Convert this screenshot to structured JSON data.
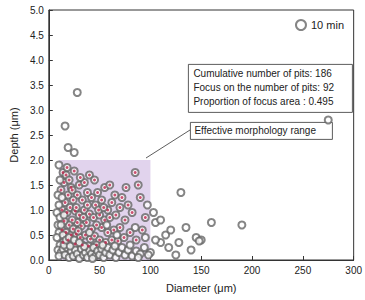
{
  "chart_data": {
    "type": "scatter",
    "x_label": "Diameter (μm)",
    "y_label": "Depth (μm)",
    "xlim": [
      0,
      300
    ],
    "xticks": [
      0,
      50,
      100,
      150,
      200,
      250,
      300
    ],
    "ylim": [
      0,
      5
    ],
    "yticks": [
      {
        "value": 0,
        "label": "0.0"
      },
      {
        "value": 0.5,
        "label": "0.5"
      },
      {
        "value": 1,
        "label": "1.0"
      },
      {
        "value": 1.5,
        "label": "1.5"
      },
      {
        "value": 2,
        "label": "2.0"
      },
      {
        "value": 2.5,
        "label": "2.5"
      },
      {
        "value": 3,
        "label": "3.0"
      },
      {
        "value": 3.5,
        "label": "3.5"
      },
      {
        "value": 4,
        "label": "4.0"
      },
      {
        "value": 4.5,
        "label": "4.5"
      },
      {
        "value": 5,
        "label": "5.0"
      }
    ],
    "grid": false,
    "legend": "upper right",
    "annotations": [
      "Cumulative number of pits: 186",
      "Focus on the number of pits: 92",
      "Proportion of focus area : 0.495"
    ],
    "focus_area": {
      "label": "Effective morphology range",
      "xlim": [
        10,
        100
      ],
      "ylim": [
        0,
        2
      ],
      "color": "#d9c8e8"
    },
    "series": [
      {
        "name": "10 min",
        "color": "#666666",
        "marker": "circle_open",
        "focus_color": "#c0284e",
        "x": [
          14,
          15,
          17,
          20,
          22,
          25,
          30,
          35,
          40,
          45,
          48,
          55,
          60,
          65,
          72,
          85,
          88,
          90,
          78,
          70,
          62,
          58,
          52,
          46,
          42,
          38,
          33,
          28,
          24,
          19,
          16,
          13,
          18,
          21,
          26,
          30,
          35,
          40,
          44,
          50,
          55,
          60,
          66,
          75,
          82,
          95,
          92,
          80,
          70,
          64,
          58,
          52,
          47,
          42,
          37,
          32,
          28,
          23,
          20,
          15,
          13,
          17,
          22,
          27,
          31,
          36,
          41,
          45,
          50,
          56,
          62,
          68,
          74,
          86,
          26,
          19,
          14,
          33,
          39,
          47,
          24,
          29,
          34,
          38,
          27,
          49,
          54,
          23,
          31,
          18,
          12,
          76,
          28,
          16,
          19,
          25,
          275,
          130,
          10,
          11,
          9,
          10,
          8,
          11,
          9,
          10,
          8,
          11,
          9,
          12,
          10,
          105,
          110,
          115,
          120,
          128,
          135,
          140,
          145,
          150,
          160,
          190,
          110,
          100,
          125,
          105,
          118,
          98,
          148,
          103,
          14,
          16,
          18,
          20,
          22,
          24,
          26,
          28,
          30,
          32,
          34,
          36,
          38,
          40,
          42,
          44,
          46,
          48,
          50,
          52,
          54,
          56,
          58,
          60,
          63,
          66,
          69,
          72,
          75,
          78,
          82,
          86,
          90,
          94,
          15,
          21,
          35,
          43,
          53,
          65,
          80,
          88,
          13,
          15,
          12,
          14,
          17,
          20,
          25,
          30,
          40,
          57,
          67,
          85,
          95,
          97
        ],
        "y": [
          1.75,
          1.55,
          1.7,
          1.6,
          1.45,
          1.78,
          1.5,
          1.55,
          1.7,
          1.6,
          1.35,
          1.45,
          1.5,
          1.3,
          1.25,
          1.75,
          1.5,
          1.25,
          1.1,
          1.05,
          1.15,
          1.0,
          1.2,
          1.1,
          1.25,
          1.35,
          1.2,
          1.3,
          1.2,
          1.3,
          1.15,
          1.0,
          0.95,
          1.05,
          0.98,
          0.9,
          1.0,
          0.92,
          0.85,
          0.9,
          0.8,
          0.85,
          0.9,
          0.8,
          0.95,
          0.85,
          0.6,
          0.55,
          0.65,
          0.6,
          0.55,
          0.65,
          0.7,
          0.62,
          0.75,
          0.68,
          0.75,
          0.8,
          0.7,
          0.78,
          0.6,
          0.55,
          0.5,
          0.52,
          0.45,
          0.5,
          0.42,
          0.48,
          0.4,
          0.35,
          0.4,
          0.38,
          0.45,
          0.4,
          0.32,
          0.4,
          0.35,
          0.3,
          0.28,
          0.3,
          0.62,
          0.58,
          0.85,
          1.1,
          1.05,
          1.0,
          1.05,
          1.4,
          1.65,
          1.85,
          1.4,
          1.45,
          3.35,
          2.68,
          2.25,
          2.15,
          2.8,
          1.35,
          1.9,
          1.6,
          1.3,
          1.1,
          0.95,
          0.85,
          0.7,
          0.55,
          0.45,
          0.3,
          0.2,
          0.15,
          0.08,
          0.75,
          0.8,
          0.5,
          0.6,
          0.35,
          0.65,
          0.2,
          0.45,
          0.4,
          0.75,
          0.7,
          0.35,
          0.15,
          0.1,
          0.4,
          0.25,
          0.1,
          0.38,
          0.95,
          0.22,
          0.1,
          0.25,
          0.05,
          0.18,
          0.08,
          0.2,
          0.12,
          0.03,
          0.22,
          0.1,
          0.15,
          0.05,
          0.2,
          0.12,
          0.25,
          0.08,
          0.18,
          0.1,
          0.22,
          0.05,
          0.15,
          0.25,
          0.1,
          0.2,
          0.05,
          0.15,
          0.25,
          0.1,
          0.2,
          0.08,
          0.18,
          0.12,
          0.25,
          0.3,
          0.28,
          0.27,
          0.03,
          0.3,
          0.28,
          0.3,
          0.05,
          1.25,
          0.9,
          0.7,
          0.5,
          0.4,
          0.45,
          0.4,
          0.35,
          0.55,
          0.7,
          0.5,
          0.65,
          0.45,
          1.1
        ],
        "focus": [
          true,
          true,
          true,
          true,
          true,
          true,
          true,
          true,
          true,
          true,
          true,
          true,
          true,
          true,
          true,
          true,
          true,
          true,
          true,
          true,
          true,
          true,
          true,
          true,
          true,
          true,
          true,
          true,
          true,
          true,
          true,
          true,
          true,
          true,
          true,
          true,
          true,
          true,
          true,
          true,
          true,
          true,
          true,
          true,
          true,
          true,
          true,
          true,
          true,
          true,
          true,
          true,
          true,
          true,
          true,
          true,
          true,
          true,
          true,
          true,
          true,
          true,
          true,
          true,
          true,
          true,
          true,
          true,
          true,
          true,
          true,
          true,
          true,
          true,
          true,
          true,
          true,
          true,
          true,
          true,
          true,
          true,
          true,
          true,
          true,
          true,
          true,
          true,
          true,
          true,
          true,
          true,
          false,
          false,
          false,
          false,
          false,
          false,
          false,
          false,
          false,
          false,
          false,
          false,
          false,
          false,
          false,
          false,
          false,
          false,
          false,
          false,
          false,
          false,
          false,
          false,
          false,
          false,
          false,
          false,
          false,
          false,
          false,
          false,
          false,
          false,
          false,
          false,
          false,
          false,
          false,
          false,
          false,
          false,
          false,
          false,
          false,
          false,
          false,
          false,
          false,
          false,
          false,
          false,
          false,
          false,
          false,
          false,
          false,
          false,
          false,
          false,
          false,
          false,
          false,
          false,
          false,
          false,
          false,
          false,
          false,
          false,
          false,
          false,
          false,
          false,
          false,
          false,
          false,
          false,
          false,
          false,
          false,
          false,
          false,
          false,
          false,
          false,
          false,
          false,
          false,
          false,
          false,
          false,
          false,
          false
        ]
      }
    ]
  }
}
